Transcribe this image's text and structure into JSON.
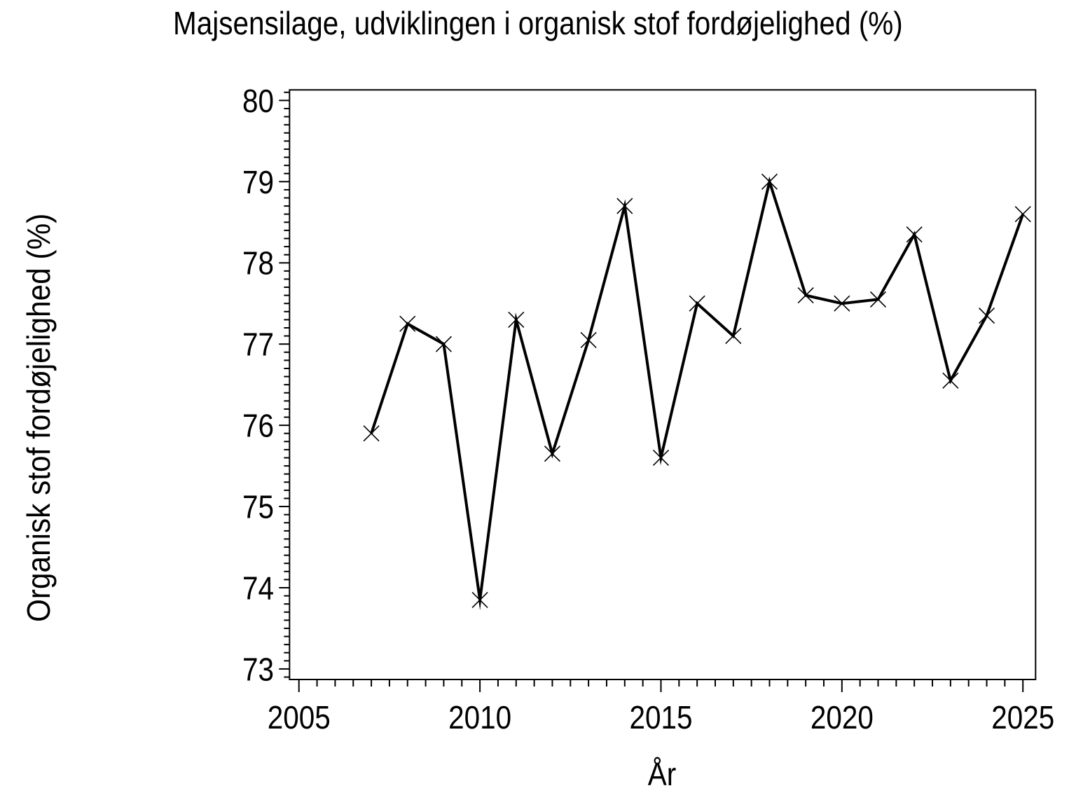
{
  "page": {
    "background_color": "#ffffff",
    "text_color": "#000000"
  },
  "chart_data": {
    "type": "line",
    "title": "Majsensilage, udviklingen i organisk stof fordøjelighed (%)",
    "xlabel": "År",
    "ylabel": "Organisk stof fordøjelighed (%)",
    "series": [
      {
        "name": "Organisk stof fordøjelighed",
        "marker": "x",
        "color": "#000000",
        "x": [
          2007,
          2008,
          2009,
          2010,
          2011,
          2012,
          2013,
          2014,
          2015,
          2016,
          2017,
          2018,
          2019,
          2020,
          2021,
          2022,
          2023,
          2024,
          2025
        ],
        "values": [
          75.9,
          77.25,
          77.0,
          73.85,
          77.3,
          75.65,
          77.05,
          78.7,
          75.6,
          77.5,
          77.1,
          79.0,
          77.6,
          77.5,
          77.55,
          78.35,
          76.55,
          77.35,
          78.6
        ]
      }
    ],
    "xlim": [
      2004.74,
      2025.35
    ],
    "ylim": [
      72.87,
      80.13
    ],
    "x_major_ticks": [
      2005,
      2010,
      2015,
      2020,
      2025
    ],
    "x_minor_tick_step": 0.5,
    "y_major_ticks": [
      73,
      74,
      75,
      76,
      77,
      78,
      79,
      80
    ],
    "y_minor_tick_step": 0.1,
    "grid": false,
    "legend": "none",
    "frame": "full-box"
  }
}
